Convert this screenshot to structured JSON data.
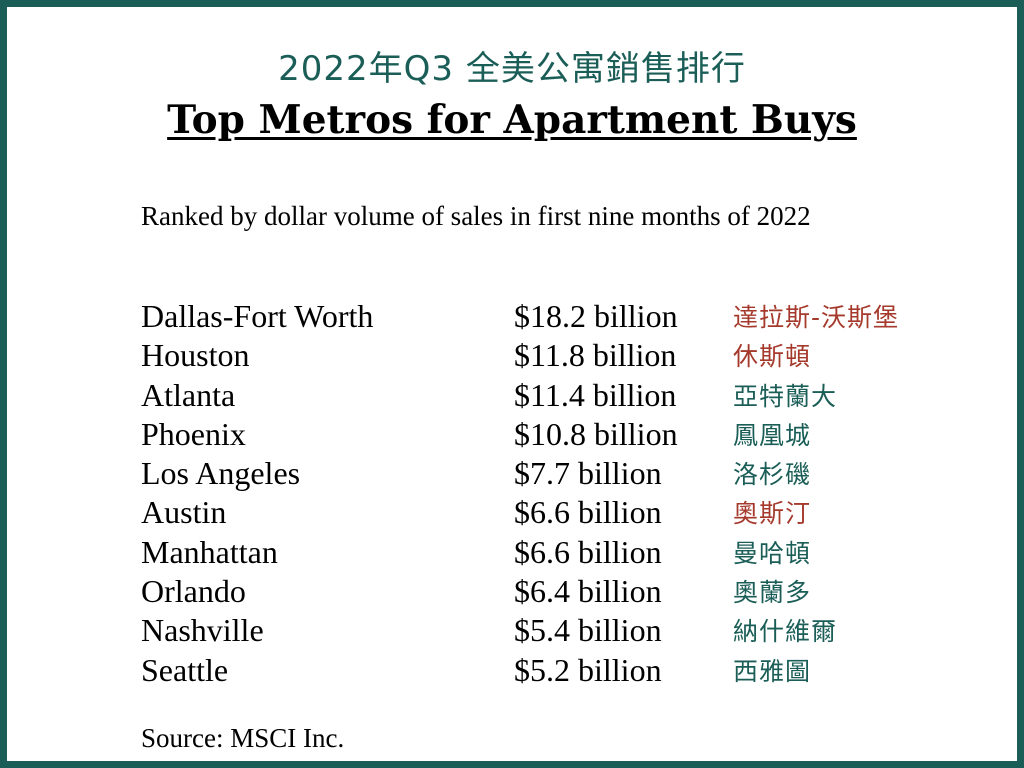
{
  "title_zh": "2022年Q3 全美公寓銷售排行",
  "title_en": "Top Metros for Apartment Buys",
  "subtitle": "Ranked by dollar volume of sales in first nine months of 2022",
  "colors": {
    "frame": "#1b5e57",
    "zh_green": "#1b5e57",
    "zh_red": "#a53a2c"
  },
  "metros": [
    {
      "city": "Dallas-Fort Worth",
      "volume": "$18.2 billion",
      "zh": "達拉斯-沃斯堡",
      "zh_color": "#a53a2c"
    },
    {
      "city": "Houston",
      "volume": "$11.8 billion",
      "zh": "休斯頓",
      "zh_color": "#a53a2c"
    },
    {
      "city": "Atlanta",
      "volume": "$11.4 billion",
      "zh": "亞特蘭大",
      "zh_color": "#1b5e57"
    },
    {
      "city": "Phoenix",
      "volume": "$10.8 billion",
      "zh": "鳳凰城",
      "zh_color": "#1b5e57"
    },
    {
      "city": "Los Angeles",
      "volume": "$7.7 billion",
      "zh": "洛杉磯",
      "zh_color": "#1b5e57"
    },
    {
      "city": "Austin",
      "volume": "$6.6 billion",
      "zh": "奧斯汀",
      "zh_color": "#a53a2c"
    },
    {
      "city": "Manhattan",
      "volume": "$6.6 billion",
      "zh": "曼哈頓",
      "zh_color": "#1b5e57"
    },
    {
      "city": "Orlando",
      "volume": "$6.4 billion",
      "zh": "奧蘭多",
      "zh_color": "#1b5e57"
    },
    {
      "city": "Nashville",
      "volume": "$5.4 billion",
      "zh": "納什維爾",
      "zh_color": "#1b5e57"
    },
    {
      "city": "Seattle",
      "volume": "$5.2 billion",
      "zh": "西雅圖",
      "zh_color": "#1b5e57"
    }
  ],
  "source": "Source: MSCI Inc."
}
